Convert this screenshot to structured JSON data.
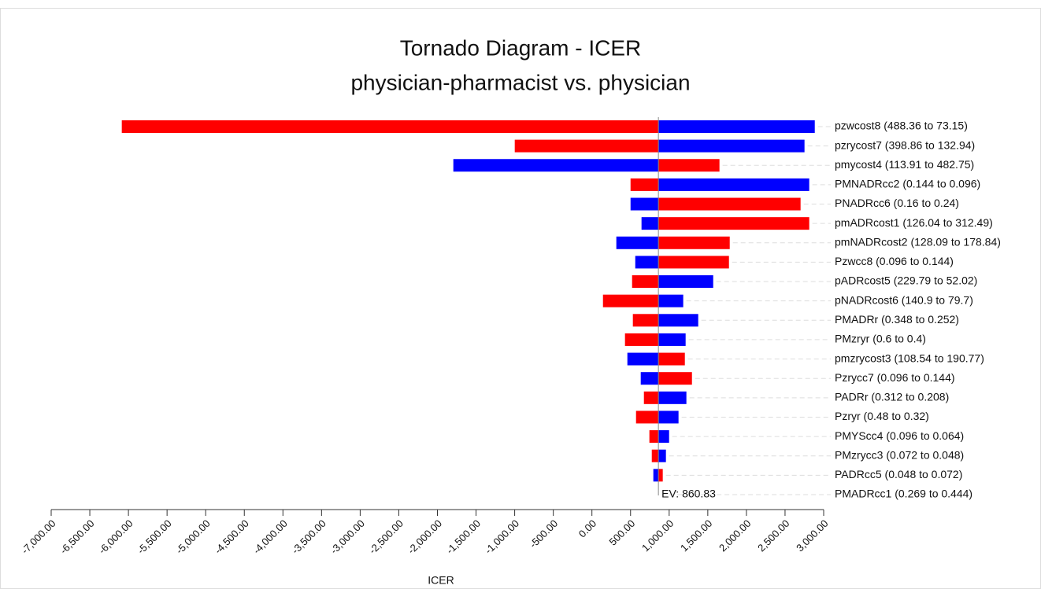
{
  "chart_data": {
    "type": "tornado",
    "title": "Tornado Diagram - ICER",
    "subtitle": "physician-pharmacist vs. physician",
    "xlabel": "ICER",
    "ev": 860.83,
    "ev_label": "EV: 860.83",
    "categories": [
      "pzwcost8 (488.36 to 73.15)",
      "pzrycost7 (398.86 to 132.94)",
      "pmycost4 (113.91 to 482.75)",
      "PMNADRcc2 (0.144 to 0.096)",
      "PNADRcc6 (0.16 to 0.24)",
      "pmADRcost1 (126.04 to 312.49)",
      "pmNADRcost2 (128.09 to 178.84)",
      "Pzwcc8 (0.096 to 0.144)",
      "pADRcost5 (229.79 to 52.02)",
      "pNADRcost6 (140.9 to 79.7)",
      "PMADRr (0.348 to 0.252)",
      "PMzryr (0.6 to 0.4)",
      "pmzrycost3 (108.54 to 190.77)",
      "Pzrycc7 (0.096 to 0.144)",
      "PADRr (0.312 to 0.208)",
      "Pzryr (0.48 to 0.32)",
      "PMYScc4 (0.096 to 0.064)",
      "PMzrycc3 (0.072 to 0.048)",
      "PADRcc5 (0.048 to 0.072)",
      "PMADRcc1 (0.269 to 0.444)"
    ],
    "series": [
      {
        "color": "#ff0000",
        "values": [
          -6086,
          -999,
          1651,
          500,
          2701,
          2813,
          1784,
          1774,
          520,
          143,
          530,
          428,
          1203,
          1295,
          673,
          571,
          744,
          775,
          917,
          860.83
        ]
      },
      {
        "color": "#0000ff",
        "values": [
          2885,
          2752,
          -1794,
          2813,
          500,
          642,
          316,
          561,
          1570,
          1182,
          1376,
          1213,
          459,
          632,
          1223,
          1121,
          999,
          958,
          795,
          860.83
        ]
      }
    ],
    "xlim": [
      -7000,
      3000
    ],
    "xticks": [
      {
        "value": -7000,
        "label": "-7,000.00"
      },
      {
        "value": -6500,
        "label": "-6,500.00"
      },
      {
        "value": -6000,
        "label": "-6,000.00"
      },
      {
        "value": -5500,
        "label": "-5,500.00"
      },
      {
        "value": -5000,
        "label": "-5,000.00"
      },
      {
        "value": -4500,
        "label": "-4,500.00"
      },
      {
        "value": -4000,
        "label": "-4,000.00"
      },
      {
        "value": -3500,
        "label": "-3,500.00"
      },
      {
        "value": -3000,
        "label": "-3,000.00"
      },
      {
        "value": -2500,
        "label": "-2,500.00"
      },
      {
        "value": -2000,
        "label": "-2,000.00"
      },
      {
        "value": -1500,
        "label": "-1,500.00"
      },
      {
        "value": -1000,
        "label": "-1,000.00"
      },
      {
        "value": -500,
        "label": "-500.00"
      },
      {
        "value": 0,
        "label": "0.00"
      },
      {
        "value": 500,
        "label": "500.00"
      },
      {
        "value": 1000,
        "label": "1,000.00"
      },
      {
        "value": 1500,
        "label": "1,500.00"
      },
      {
        "value": 2000,
        "label": "2,000.00"
      },
      {
        "value": 2500,
        "label": "2,500.00"
      },
      {
        "value": 3000,
        "label": "3,000.00"
      }
    ]
  }
}
